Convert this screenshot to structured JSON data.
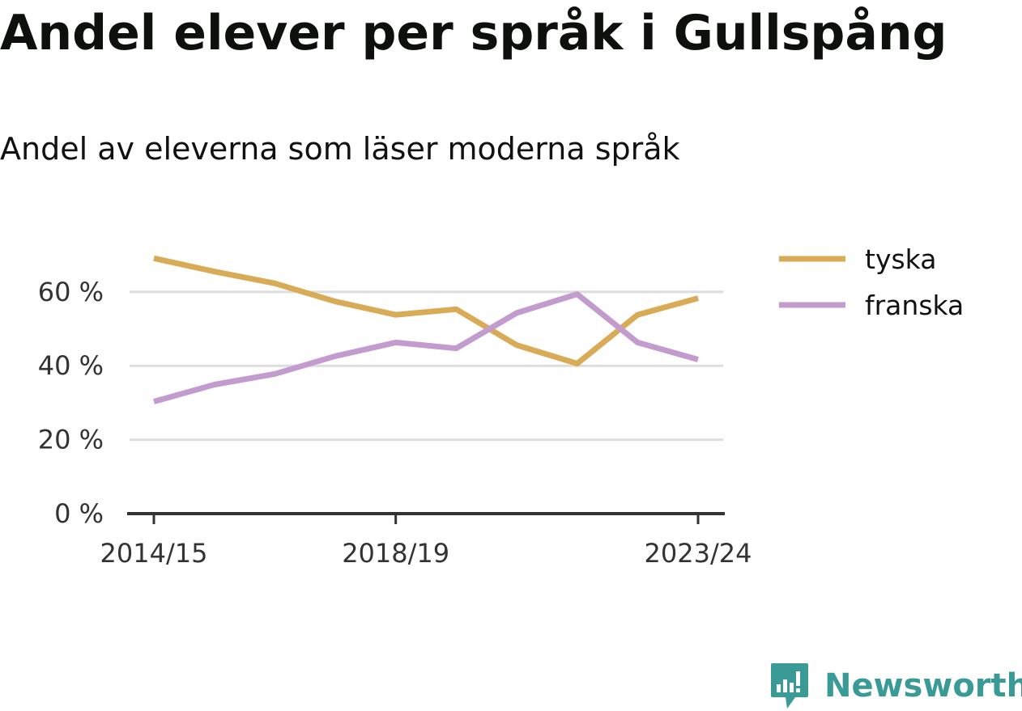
{
  "header": {
    "title": "Andel elever per språk i Gullspång",
    "subtitle": "Andel av eleverna som läser moderna språk"
  },
  "brand": {
    "name": "Newsworthy",
    "color": "#3a9a95",
    "icon": "newsworthy-chat-bars-icon"
  },
  "chart_data": {
    "type": "line",
    "x": [
      "2014/15",
      "2015/16",
      "2016/17",
      "2017/18",
      "2018/19",
      "2019/20",
      "2020/21",
      "2021/22",
      "2022/23",
      "2023/24"
    ],
    "x_tick_labels": [
      "2014/15",
      "2018/19",
      "2023/24"
    ],
    "y_ticks": [
      0,
      20,
      40,
      60
    ],
    "y_tick_labels": [
      "0 %",
      "20 %",
      "40 %",
      "60 %"
    ],
    "ylim": [
      0,
      72
    ],
    "grid": true,
    "legend_position": "right",
    "series": [
      {
        "name": "tyska",
        "color": "#d9ab56",
        "values": [
          69.1,
          65.5,
          62.3,
          57.4,
          53.8,
          55.3,
          45.6,
          40.6,
          53.8,
          58.3
        ]
      },
      {
        "name": "franska",
        "color": "#c39bce",
        "values": [
          30.3,
          34.9,
          37.8,
          42.6,
          46.3,
          44.7,
          54.3,
          59.4,
          46.3,
          41.7
        ]
      }
    ]
  }
}
